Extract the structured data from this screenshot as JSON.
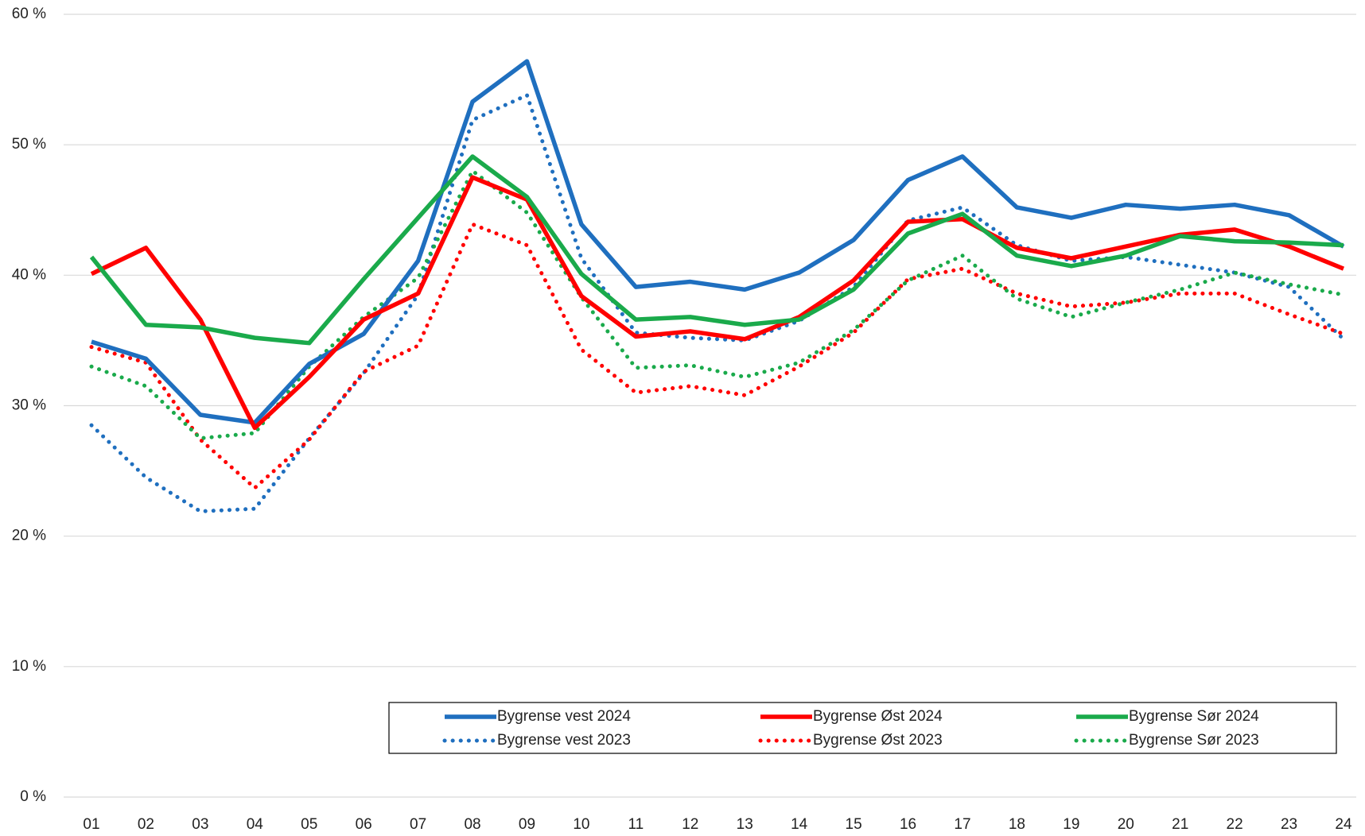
{
  "chart_data": {
    "type": "line",
    "categories": [
      "01",
      "02",
      "03",
      "04",
      "05",
      "06",
      "07",
      "08",
      "09",
      "10",
      "11",
      "12",
      "13",
      "14",
      "15",
      "16",
      "17",
      "18",
      "19",
      "20",
      "21",
      "22",
      "23",
      "24"
    ],
    "ylim": [
      0,
      60
    ],
    "yticks": [
      {
        "value": 0,
        "label": "0 %"
      },
      {
        "value": 10,
        "label": "10 %"
      },
      {
        "value": 20,
        "label": "20 %"
      },
      {
        "value": 30,
        "label": "30 %"
      },
      {
        "value": 40,
        "label": "40 %"
      },
      {
        "value": 50,
        "label": "50 %"
      },
      {
        "value": 60,
        "label": "60 %"
      }
    ],
    "grid": true,
    "legend": "bottom-right",
    "series": [
      {
        "name": "Bygrense vest 2024",
        "color": "#1f6fbf",
        "dash": "solid",
        "values": [
          34.9,
          33.6,
          29.3,
          28.7,
          33.2,
          35.5,
          41.1,
          53.3,
          56.4,
          43.9,
          39.1,
          39.5,
          38.9,
          40.2,
          42.7,
          47.3,
          49.1,
          45.2,
          44.4,
          45.4,
          45.1,
          45.4,
          44.6,
          42.2
        ]
      },
      {
        "name": "Bygrense Øst 2024",
        "color": "#ff0000",
        "dash": "solid",
        "values": [
          40.1,
          42.1,
          36.6,
          28.3,
          32.2,
          36.6,
          38.6,
          47.5,
          45.8,
          38.4,
          35.3,
          35.7,
          35.1,
          36.8,
          39.6,
          44.1,
          44.3,
          42.1,
          41.3,
          42.2,
          43.1,
          43.5,
          42.2,
          40.5
        ]
      },
      {
        "name": "Bygrense Sør 2024",
        "color": "#1aaa4b",
        "dash": "solid",
        "values": [
          41.4,
          36.2,
          36.0,
          35.2,
          34.8,
          39.7,
          44.4,
          49.1,
          46.0,
          40.1,
          36.6,
          36.8,
          36.2,
          36.6,
          38.9,
          43.2,
          44.7,
          41.5,
          40.7,
          41.5,
          43.0,
          42.6,
          42.5,
          42.3
        ]
      },
      {
        "name": "Bygrense vest 2023",
        "color": "#1f6fbf",
        "dash": "dotted",
        "values": [
          28.5,
          24.5,
          21.9,
          22.1,
          27.5,
          32.5,
          38.5,
          51.9,
          53.8,
          41.3,
          35.6,
          35.2,
          35.0,
          36.5,
          39.1,
          44.2,
          45.2,
          42.3,
          41.1,
          41.4,
          40.8,
          40.2,
          39.1,
          35.1
        ]
      },
      {
        "name": "Bygrense Øst 2023",
        "color": "#ff0000",
        "dash": "dotted",
        "values": [
          34.5,
          33.3,
          27.4,
          23.7,
          27.4,
          32.6,
          34.6,
          43.9,
          42.3,
          34.3,
          31.0,
          31.5,
          30.8,
          33.0,
          35.6,
          39.7,
          40.5,
          38.6,
          37.6,
          37.9,
          38.6,
          38.6,
          37.0,
          35.5
        ]
      },
      {
        "name": "Bygrense Sør 2023",
        "color": "#1aaa4b",
        "dash": "dotted",
        "values": [
          33.0,
          31.5,
          27.5,
          27.9,
          33.0,
          36.8,
          39.8,
          48.0,
          44.8,
          38.3,
          32.9,
          33.1,
          32.2,
          33.3,
          35.8,
          39.6,
          41.5,
          38.2,
          36.8,
          37.9,
          38.9,
          40.2,
          39.3,
          38.5
        ]
      }
    ]
  }
}
